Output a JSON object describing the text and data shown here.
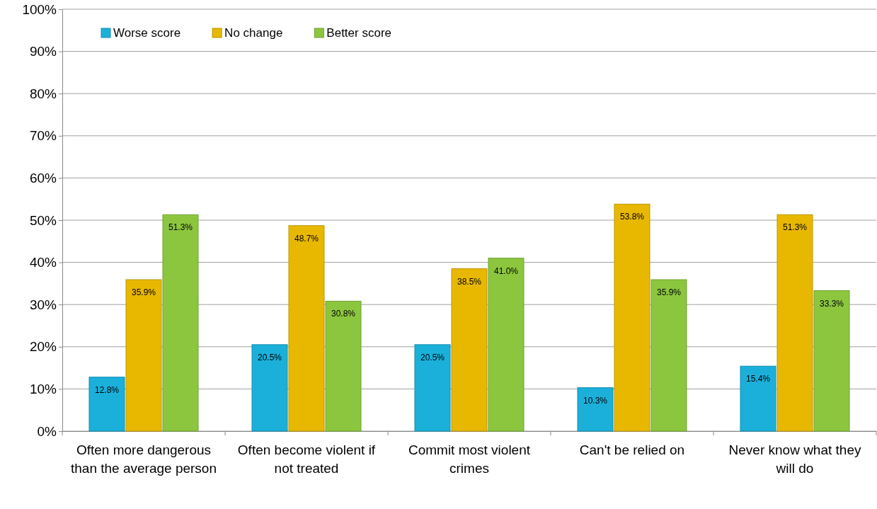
{
  "chart_data": {
    "type": "bar",
    "categories": [
      "Often more dangerous than the average person",
      "Often become violent if not treated",
      "Commit most violent crimes",
      "Can't be relied on",
      "Never know what they will do"
    ],
    "series": [
      {
        "name": "Worse score",
        "color": "#1ab0da",
        "values": [
          12.8,
          20.5,
          20.5,
          10.3,
          15.4
        ],
        "value_labels": [
          "12.8%",
          "20.5%",
          "20.5%",
          "10.3%",
          "15.4%"
        ]
      },
      {
        "name": "No change",
        "color": "#e8b800",
        "values": [
          35.9,
          48.7,
          38.5,
          53.8,
          51.3
        ],
        "value_labels": [
          "35.9%",
          "48.7%",
          "38.5%",
          "53.8%",
          "51.3%"
        ]
      },
      {
        "name": "Better score",
        "color": "#8cc63f",
        "values": [
          51.3,
          30.8,
          41.0,
          35.9,
          33.3
        ],
        "value_labels": [
          "51.3%",
          "30.8%",
          "41.0%",
          "35.9%",
          "33.3%"
        ]
      }
    ],
    "ylim": [
      0,
      100
    ],
    "yticks": [
      {
        "value": 0,
        "label": "0%"
      },
      {
        "value": 10,
        "label": "10%"
      },
      {
        "value": 20,
        "label": "20%"
      },
      {
        "value": 30,
        "label": "30%"
      },
      {
        "value": 40,
        "label": "40%"
      },
      {
        "value": 50,
        "label": "50%"
      },
      {
        "value": 60,
        "label": "60%"
      },
      {
        "value": 70,
        "label": "70%"
      },
      {
        "value": 80,
        "label": "80%"
      },
      {
        "value": 90,
        "label": "90%"
      },
      {
        "value": 100,
        "label": "100%"
      }
    ],
    "grid": "y",
    "legend": "top left"
  }
}
